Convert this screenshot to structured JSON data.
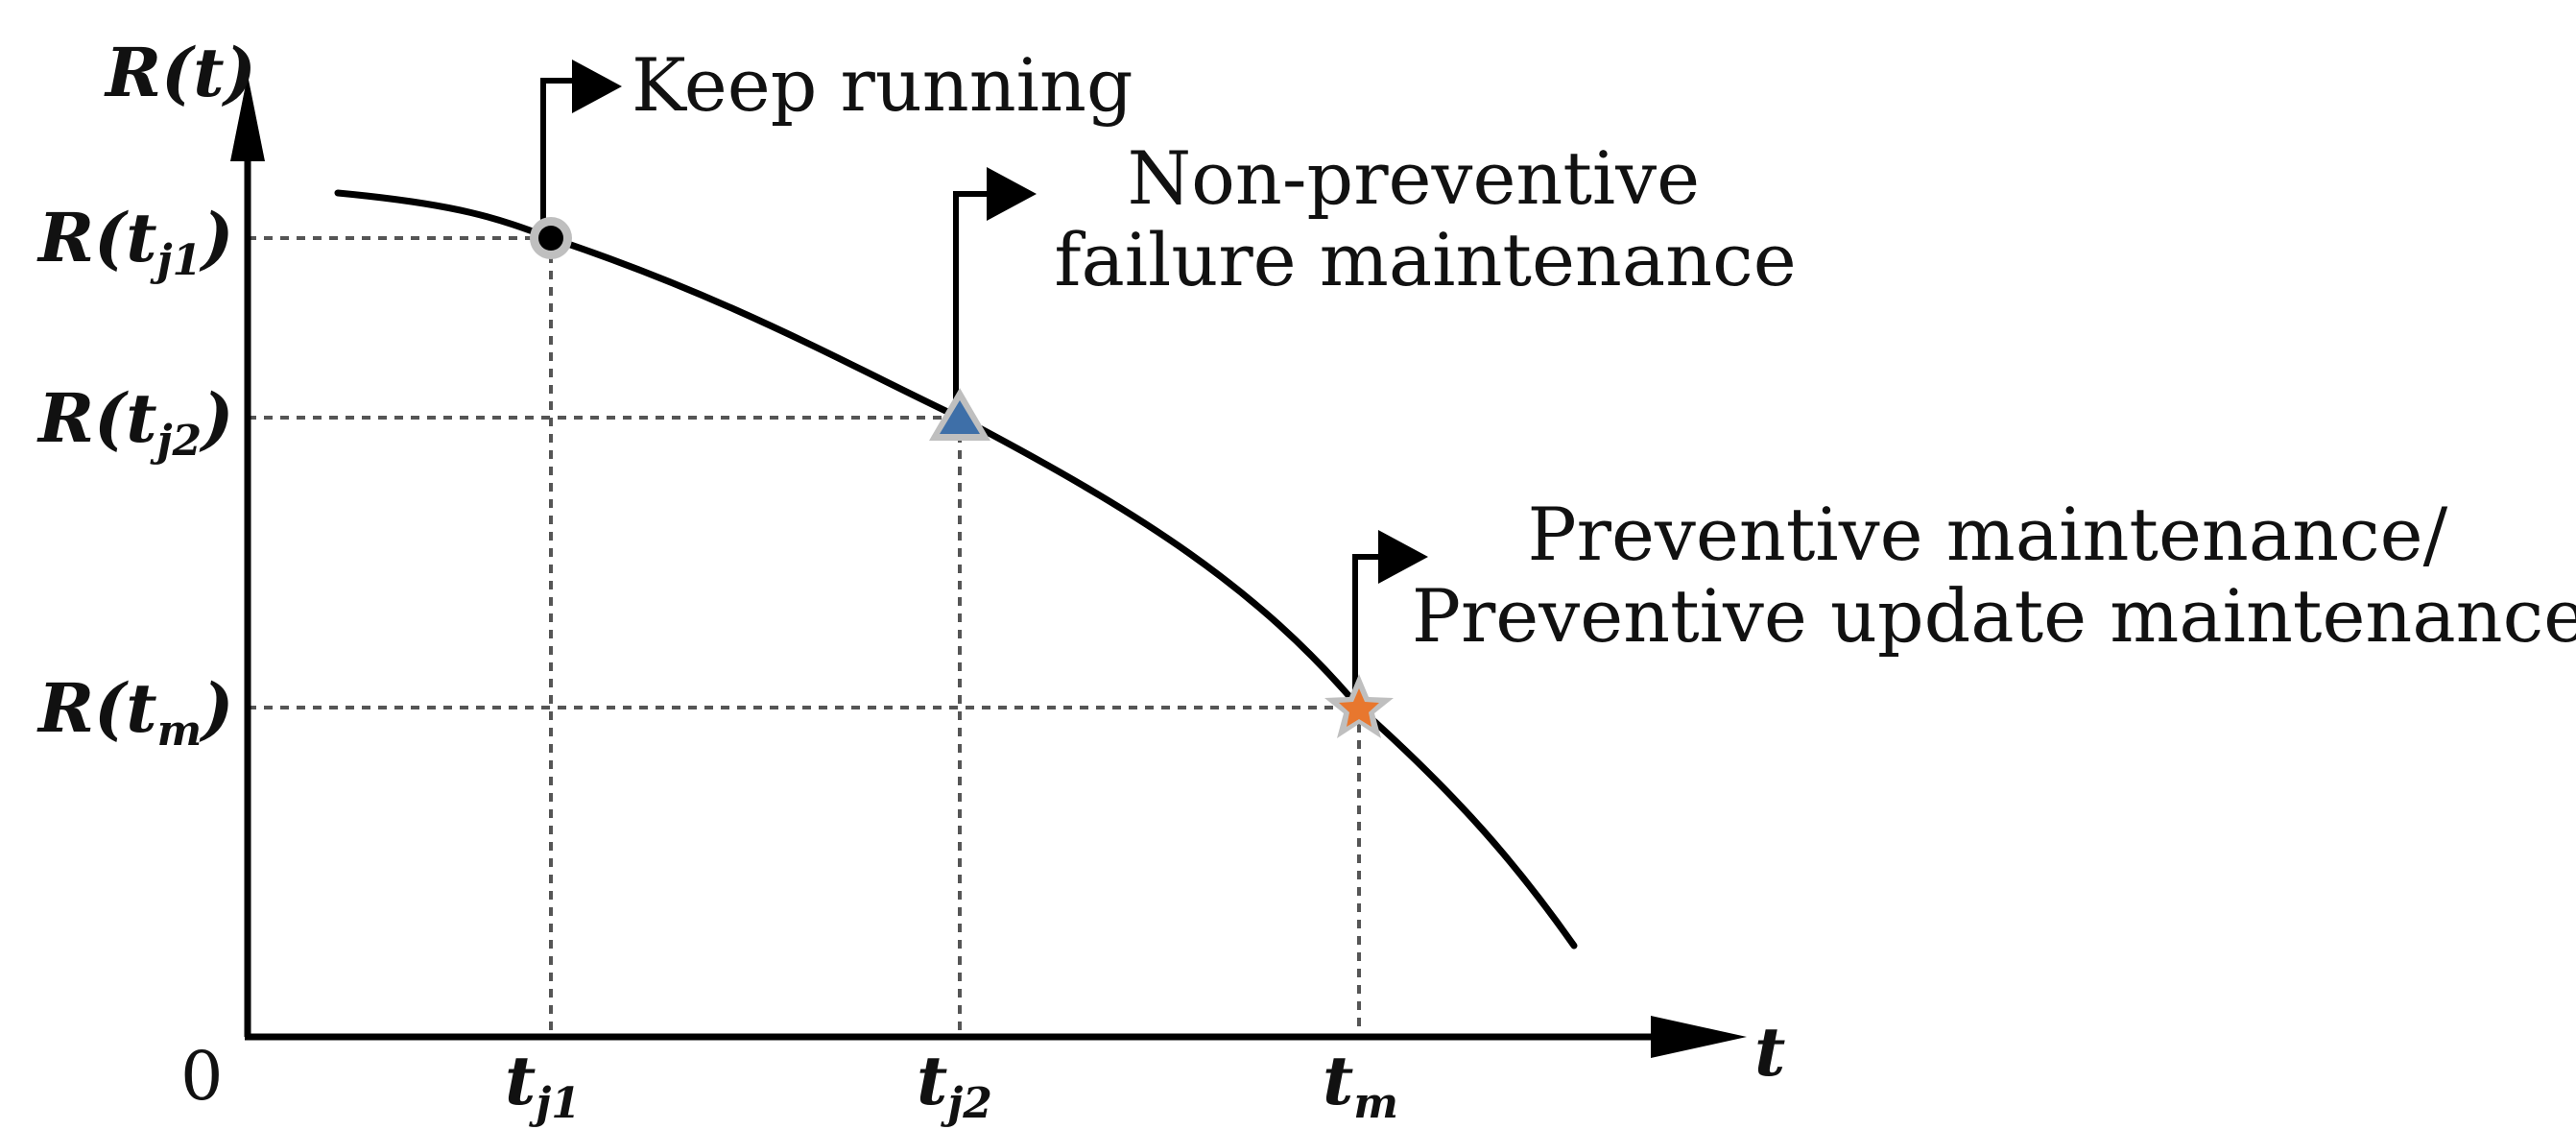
{
  "axes": {
    "y_label": "R(t)",
    "x_label": "t",
    "origin_label": "0"
  },
  "y_ticks": [
    {
      "base": "R(t",
      "sub": "j1",
      "close": ")"
    },
    {
      "base": "R(t",
      "sub": "j2",
      "close": ")"
    },
    {
      "base": "R(t",
      "sub": "m",
      "close": ")"
    }
  ],
  "x_ticks": [
    {
      "base": "t",
      "sub": "j1"
    },
    {
      "base": "t",
      "sub": "j2"
    },
    {
      "base": "t",
      "sub": "m"
    }
  ],
  "decisions": [
    {
      "lines": [
        "Keep running"
      ],
      "marker": "circle",
      "marker_color": "#000000"
    },
    {
      "lines": [
        "Non-preventive",
        "failure maintenance"
      ],
      "marker": "triangle",
      "marker_color": "#3E6FA8"
    },
    {
      "lines": [
        "Preventive  maintenance/",
        "Preventive  update maintenance"
      ],
      "marker": "star",
      "marker_color": "#E8772E"
    }
  ],
  "colors": {
    "marker_outline": "#BFBFBF",
    "guide_line": "#555555",
    "curve": "#000000"
  }
}
